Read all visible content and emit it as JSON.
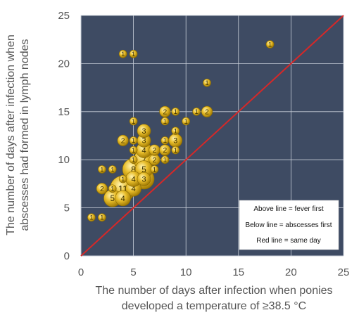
{
  "chart_data": {
    "type": "scatter",
    "subtype": "bubble",
    "xlabel_lines": [
      "The number of days after infection when ponies",
      "developed a temperature of ≥38.5 °C"
    ],
    "ylabel_lines": [
      "The number of days after infection when",
      "abscesses had formed in lymph nodes"
    ],
    "xlim": [
      0,
      25
    ],
    "ylim": [
      0,
      25
    ],
    "x_ticks": [
      0,
      5,
      10,
      15,
      20,
      25
    ],
    "y_ticks": [
      0,
      5,
      10,
      15,
      20,
      25
    ],
    "grid": true,
    "plot_background": "#3e4b63",
    "bubble_color": "#e0b020",
    "line_color": "#d62828",
    "reference_line": {
      "from": [
        0,
        0
      ],
      "to": [
        25,
        25
      ],
      "label": "Red line = same day"
    },
    "legend": {
      "placement": "bottom-right",
      "entries": [
        "Above line = fever first",
        "Below line = abscesses first",
        "Red line = same day"
      ]
    },
    "points": [
      {
        "x": 1,
        "y": 4,
        "n": 1
      },
      {
        "x": 2,
        "y": 4,
        "n": 1
      },
      {
        "x": 2,
        "y": 9,
        "n": 1
      },
      {
        "x": 3,
        "y": 9,
        "n": 1
      },
      {
        "x": 2,
        "y": 7,
        "n": 2
      },
      {
        "x": 3,
        "y": 7,
        "n": 1
      },
      {
        "x": 4,
        "y": 7,
        "n": 11
      },
      {
        "x": 5,
        "y": 7,
        "n": 4
      },
      {
        "x": 3,
        "y": 6,
        "n": 5
      },
      {
        "x": 4,
        "y": 6,
        "n": 4
      },
      {
        "x": 4,
        "y": 8,
        "n": 1
      },
      {
        "x": 5,
        "y": 8,
        "n": 4
      },
      {
        "x": 6,
        "y": 8,
        "n": 7
      },
      {
        "x": 6,
        "y": 8,
        "n": 3
      },
      {
        "x": 5,
        "y": 9,
        "n": 8
      },
      {
        "x": 6,
        "y": 9,
        "n": 5
      },
      {
        "x": 7,
        "y": 9,
        "n": 1
      },
      {
        "x": 5,
        "y": 10,
        "n": 1
      },
      {
        "x": 6,
        "y": 10,
        "n": 7
      },
      {
        "x": 7,
        "y": 10,
        "n": 2
      },
      {
        "x": 8,
        "y": 10,
        "n": 1
      },
      {
        "x": 5,
        "y": 11,
        "n": 1
      },
      {
        "x": 6,
        "y": 11,
        "n": 4
      },
      {
        "x": 7,
        "y": 11,
        "n": 2
      },
      {
        "x": 8,
        "y": 11,
        "n": 2
      },
      {
        "x": 9,
        "y": 11,
        "n": 1
      },
      {
        "x": 4,
        "y": 12,
        "n": 2
      },
      {
        "x": 5,
        "y": 12,
        "n": 1
      },
      {
        "x": 6,
        "y": 12,
        "n": 3
      },
      {
        "x": 8,
        "y": 12,
        "n": 1
      },
      {
        "x": 9,
        "y": 12,
        "n": 3
      },
      {
        "x": 6,
        "y": 13,
        "n": 3
      },
      {
        "x": 9,
        "y": 13,
        "n": 1
      },
      {
        "x": 5,
        "y": 14,
        "n": 1
      },
      {
        "x": 10,
        "y": 14,
        "n": 1
      },
      {
        "x": 8,
        "y": 15,
        "n": 2
      },
      {
        "x": 9,
        "y": 15,
        "n": 1
      },
      {
        "x": 11,
        "y": 15,
        "n": 1
      },
      {
        "x": 12,
        "y": 15,
        "n": 2
      },
      {
        "x": 8,
        "y": 14,
        "n": 1
      },
      {
        "x": 12,
        "y": 18,
        "n": 1
      },
      {
        "x": 4,
        "y": 21,
        "n": 1
      },
      {
        "x": 5,
        "y": 21,
        "n": 1
      },
      {
        "x": 18,
        "y": 22,
        "n": 1
      }
    ]
  }
}
